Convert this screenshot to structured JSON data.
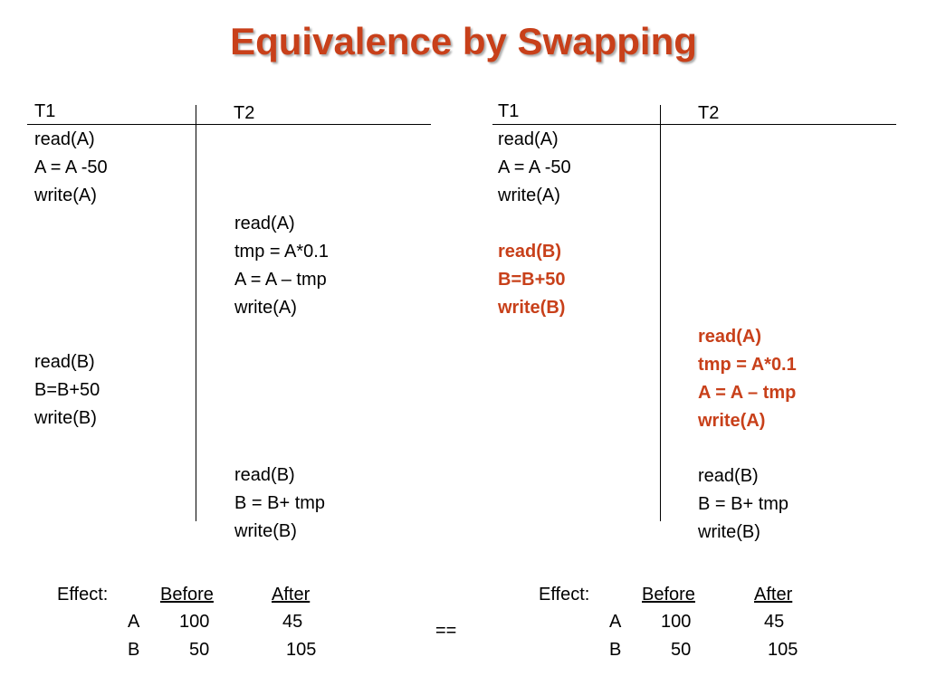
{
  "title": "Equivalence by Swapping",
  "left": {
    "header": {
      "t1": "T1",
      "t2": "T2"
    },
    "t1_block1": [
      "read(A)",
      "A = A -50",
      "write(A)"
    ],
    "t2_block1": [
      "read(A)",
      "tmp = A*0.1",
      "A = A – tmp",
      "write(A)"
    ],
    "t1_block2": [
      "read(B)",
      "B=B+50",
      "write(B)"
    ],
    "t2_block2": [
      "read(B)",
      "B = B+ tmp",
      "write(B)"
    ],
    "effect": {
      "label": "Effect:",
      "before": "Before",
      "after": "After",
      "rows": [
        {
          "var": "A",
          "before": "100",
          "after": "45"
        },
        {
          "var": "B",
          "before": "50",
          "after": "105"
        }
      ]
    }
  },
  "right": {
    "header": {
      "t1": "T1",
      "t2": "T2"
    },
    "t1_block1": [
      "read(A)",
      "A = A -50",
      "write(A)"
    ],
    "t1_block2": [
      "read(B)",
      "B=B+50",
      "write(B)"
    ],
    "t2_block1": [
      "read(A)",
      "tmp = A*0.1",
      "A = A – tmp",
      "write(A)"
    ],
    "t2_block2": [
      "read(B)",
      "B = B+ tmp",
      "write(B)"
    ],
    "effect": {
      "label": "Effect:",
      "before": "Before",
      "after": "After",
      "rows": [
        {
          "var": "A",
          "before": "100",
          "after": "45"
        },
        {
          "var": "B",
          "before": "50",
          "after": "105"
        }
      ]
    }
  },
  "equals": "==",
  "colors": {
    "accent": "#c8401a"
  }
}
